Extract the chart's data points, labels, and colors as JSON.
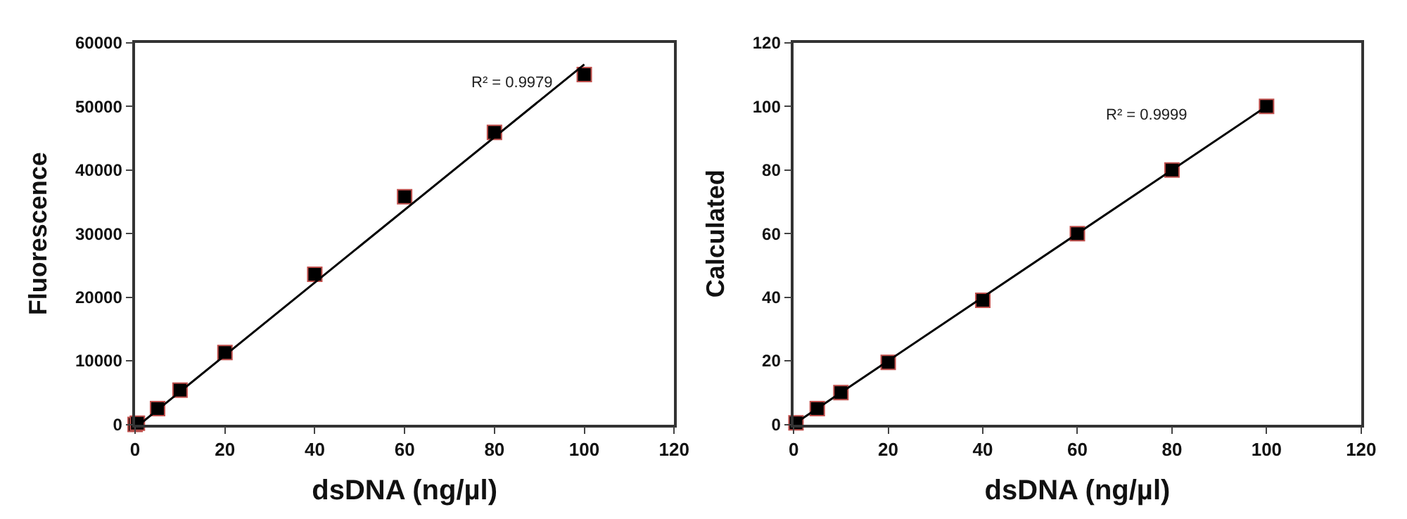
{
  "chart_data": [
    {
      "type": "scatter",
      "xlabel": "dsDNA (ng/µl)",
      "ylabel": "Fluorescence",
      "annotations": [
        "R² = 0.9979"
      ],
      "xlim": [
        0,
        120
      ],
      "xticks": [
        0,
        20,
        40,
        60,
        80,
        100,
        120
      ],
      "ylim": [
        0,
        60000
      ],
      "yticks": [
        0,
        10000,
        20000,
        30000,
        40000,
        50000,
        60000
      ],
      "series": [
        {
          "marker": "square",
          "color": "#000000",
          "x": [
            0,
            0.5,
            5,
            10,
            20,
            40,
            60,
            80,
            100
          ],
          "values": [
            0,
            200,
            2500,
            5400,
            11300,
            23600,
            35800,
            45900,
            55000
          ]
        },
        {
          "type": "line",
          "marker": "none",
          "color": "#000000",
          "x": [
            1,
            100
          ],
          "values": [
            0,
            56600
          ]
        }
      ]
    },
    {
      "type": "scatter",
      "xlabel": "dsDNA (ng/µl)",
      "ylabel": "Calculated",
      "annotations": [
        "R² = 0.9999"
      ],
      "xlim": [
        0,
        120
      ],
      "xticks": [
        0,
        20,
        40,
        60,
        80,
        100,
        120
      ],
      "ylim": [
        0,
        120
      ],
      "yticks": [
        0,
        20,
        40,
        60,
        80,
        100,
        120
      ],
      "series": [
        {
          "marker": "square",
          "color": "#000000",
          "x": [
            0.5,
            5,
            10,
            20,
            40,
            60,
            80,
            100
          ],
          "values": [
            0.5,
            5,
            10,
            19.5,
            39,
            60,
            80,
            100
          ]
        },
        {
          "type": "line",
          "marker": "none",
          "color": "#000000",
          "x": [
            0,
            100
          ],
          "values": [
            0,
            100
          ]
        }
      ]
    }
  ]
}
